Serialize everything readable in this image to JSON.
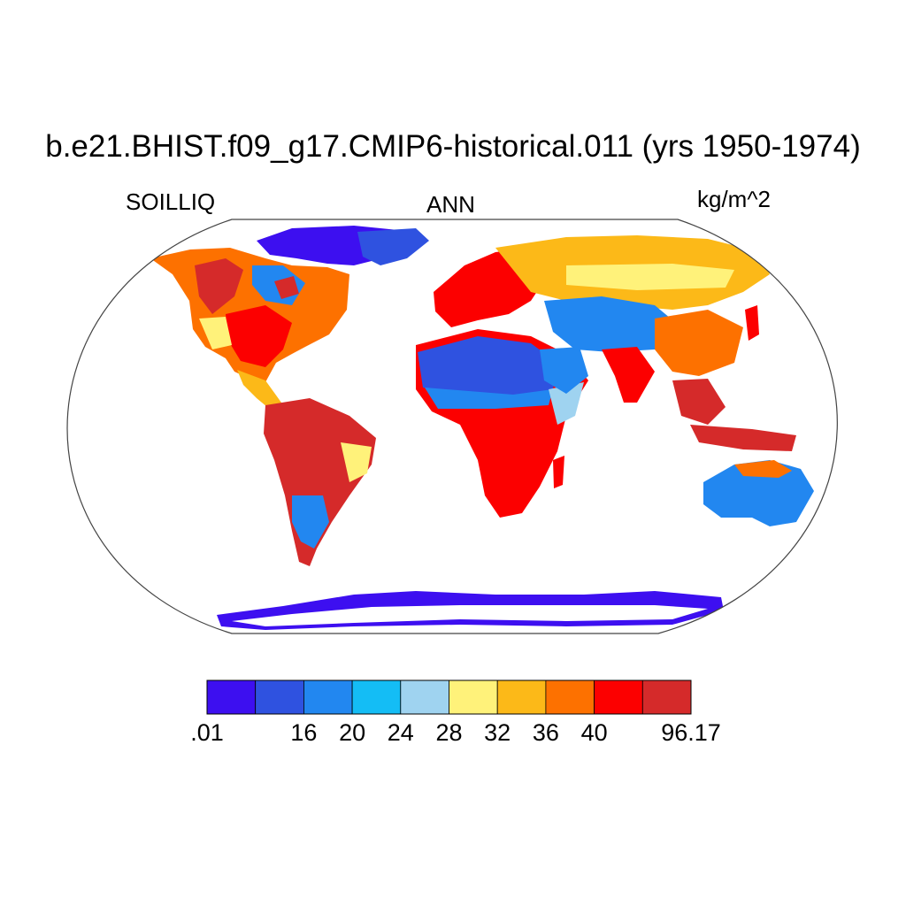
{
  "title": "b.e21.BHIST.f09_g17.CMIP6-historical.011 (yrs 1950-1974)",
  "left_label": "SOILLIQ",
  "center_label": "ANN",
  "right_label": "kg/m^2",
  "colorbar": {
    "colors": [
      "#3d0ff0",
      "#2f52e0",
      "#2287f0",
      "#14bdf5",
      "#9fd3f0",
      "#fff27a",
      "#fcb918",
      "#fd7100",
      "#fc0000",
      "#d52a2a"
    ],
    "labels": [
      {
        "text": ".01",
        "boundary": 0
      },
      {
        "text": "16",
        "boundary": 2
      },
      {
        "text": "20",
        "boundary": 3
      },
      {
        "text": "24",
        "boundary": 4
      },
      {
        "text": "28",
        "boundary": 5
      },
      {
        "text": "32",
        "boundary": 6
      },
      {
        "text": "36",
        "boundary": 7
      },
      {
        "text": "40",
        "boundary": 8
      },
      {
        "text": "96.17",
        "boundary": 10
      }
    ]
  }
}
